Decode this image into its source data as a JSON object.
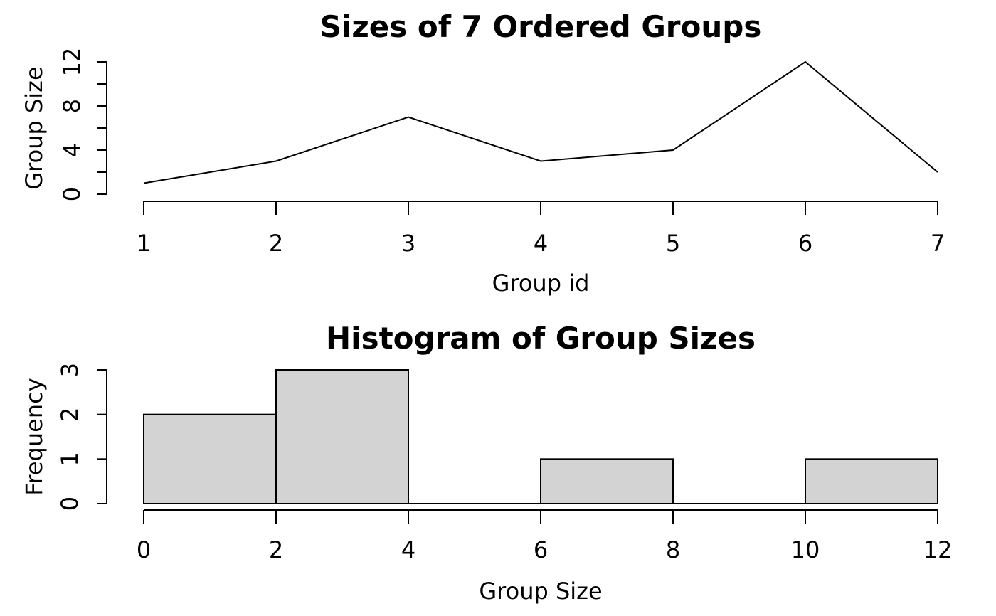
{
  "figure": {
    "background": "#ffffff",
    "foreground": "#000000"
  },
  "chart_data": [
    {
      "type": "line",
      "title": "Sizes of 7 Ordered Groups",
      "xlabel": "Group id",
      "ylabel": "Group Size",
      "x": [
        1,
        2,
        3,
        4,
        5,
        6,
        7
      ],
      "y": [
        1,
        3,
        7,
        3,
        4,
        12,
        2
      ],
      "xlim": [
        1,
        7
      ],
      "ylim": [
        0,
        12
      ],
      "x_ticks": [
        1,
        2,
        3,
        4,
        5,
        6,
        7
      ],
      "x_tick_labels": [
        "1",
        "2",
        "3",
        "4",
        "5",
        "6",
        "7"
      ],
      "y_ticks": [
        0,
        2,
        4,
        6,
        8,
        10,
        12
      ],
      "y_tick_labels": [
        "0",
        "",
        "4",
        "",
        "8",
        "",
        "12"
      ],
      "line_color": "#000000",
      "grid": false,
      "legend": "none"
    },
    {
      "type": "bar",
      "subtype": "histogram",
      "title": "Histogram of Group Sizes",
      "xlabel": "Group Size",
      "ylabel": "Frequency",
      "bin_breaks": [
        0,
        2,
        4,
        6,
        8,
        10,
        12
      ],
      "counts": [
        2,
        3,
        0,
        1,
        0,
        1
      ],
      "xlim": [
        0,
        12
      ],
      "ylim": [
        0,
        3
      ],
      "x_ticks": [
        0,
        2,
        4,
        6,
        8,
        10,
        12
      ],
      "x_tick_labels": [
        "0",
        "2",
        "4",
        "6",
        "8",
        "10",
        "12"
      ],
      "y_ticks": [
        0,
        1,
        2,
        3
      ],
      "y_tick_labels": [
        "0",
        "1",
        "2",
        "3"
      ],
      "bar_fill": "#d3d3d3",
      "bar_border": "#000000",
      "grid": false,
      "legend": "none"
    }
  ]
}
